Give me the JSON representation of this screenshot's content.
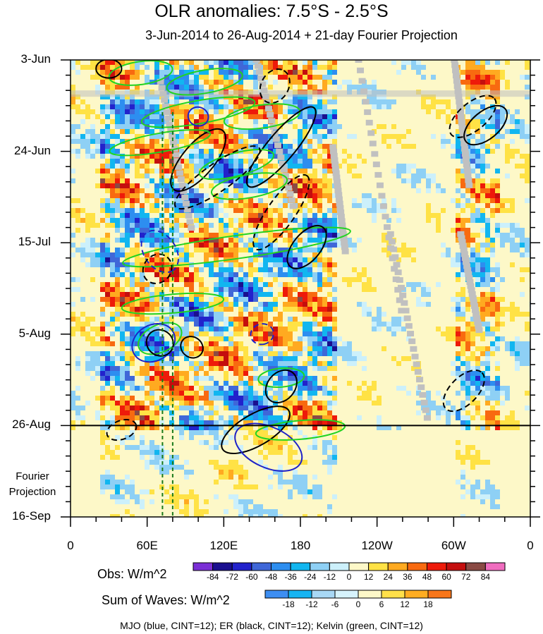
{
  "chart_data": {
    "type": "heatmap",
    "title": "OLR anomalies: 7.5°S - 2.5°S",
    "subtitle": "3-Jun-2014 to 26-Aug-2014 + 21-day Fourier Projection",
    "x_tick_labels": [
      "0",
      "60E",
      "120E",
      "180",
      "120W",
      "60W",
      "0"
    ],
    "x_tick_lons": [
      0,
      60,
      120,
      180,
      240,
      300,
      360
    ],
    "y_tick_labels": [
      "3-Jun",
      "24-Jun",
      "15-Jul",
      "5-Aug",
      "26-Aug",
      "16-Sep"
    ],
    "y_tick_days": [
      0,
      21,
      42,
      63,
      84,
      105
    ],
    "forecast_start_label": "26-Aug",
    "forecast_region_label": [
      "Fourier",
      "Projection"
    ],
    "obs_colorbar": {
      "label": "Obs: W/m^2",
      "levels": [
        -84,
        -72,
        -60,
        -48,
        -36,
        -24,
        -12,
        0,
        12,
        24,
        36,
        48,
        60,
        72,
        84
      ],
      "colors": [
        "#7b2fd6",
        "#1a0f8f",
        "#2222cc",
        "#3f67d8",
        "#2d8ef0",
        "#11b6f0",
        "#8ed0f5",
        "#ccf0fb",
        "#fdf8c8",
        "#ffe245",
        "#ffaa20",
        "#f86a10",
        "#ee1a0a",
        "#c40e0e",
        "#8a4a44",
        "#f06dbf"
      ]
    },
    "waves_colorbar": {
      "label": "Sum of Waves: W/m^2",
      "levels": [
        -18,
        -12,
        -6,
        0,
        6,
        12,
        18
      ],
      "colors": [
        "#3d8ef2",
        "#16b4f2",
        "#a8d8f5",
        "#d6f3fc",
        "#fdf8c8",
        "#ffe04a",
        "#ffad22",
        "#f8761a"
      ]
    },
    "contours": {
      "MJO": {
        "color": "#1e22c8",
        "cint": 12
      },
      "ER": {
        "color": "#000000",
        "cint": 12
      },
      "Kelvin": {
        "color": "#22d322",
        "cint": 12
      }
    },
    "vertical_reference_lons": [
      72,
      80
    ]
  },
  "footer": "MJO (blue, CINT=12); ER (black, CINT=12); Kelvin (green, CINT=12)"
}
